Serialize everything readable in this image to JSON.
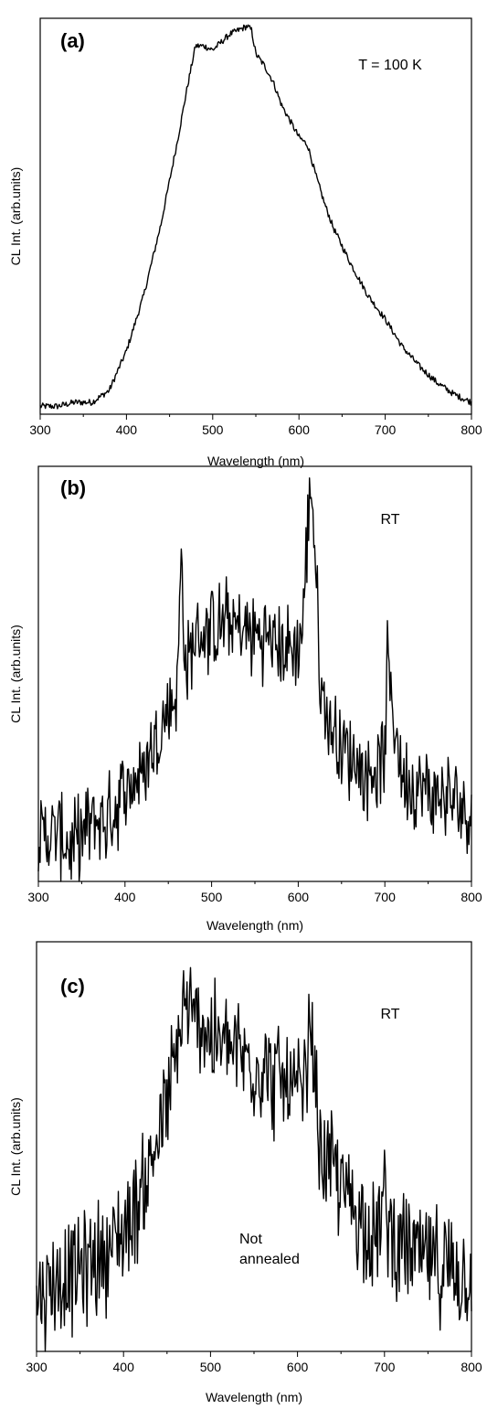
{
  "colors": {
    "line": "#000000",
    "background": "#ffffff"
  },
  "chart_data": [
    {
      "type": "line",
      "panel_label": "(a)",
      "annotation": "T = 100 K",
      "annotation2": "",
      "xlabel": "Wavelength (nm)",
      "ylabel": "CL Int. (arb.units)",
      "xlim": [
        300,
        800
      ],
      "ylim": [
        0,
        1
      ],
      "xticks": [
        "300",
        "400",
        "500",
        "600",
        "700",
        "800"
      ],
      "series": [
        {
          "x": [
            300,
            320,
            340,
            360,
            380,
            400,
            420,
            440,
            460,
            470,
            480,
            490,
            500,
            510,
            520,
            530,
            540,
            545,
            550,
            560,
            570,
            580,
            590,
            600,
            610,
            620,
            630,
            640,
            660,
            680,
            700,
            720,
            740,
            760,
            780,
            800
          ],
          "y": [
            0.02,
            0.02,
            0.03,
            0.03,
            0.06,
            0.16,
            0.3,
            0.48,
            0.7,
            0.82,
            0.93,
            0.93,
            0.92,
            0.94,
            0.96,
            0.97,
            0.98,
            0.97,
            0.91,
            0.88,
            0.84,
            0.78,
            0.74,
            0.7,
            0.68,
            0.6,
            0.53,
            0.47,
            0.38,
            0.3,
            0.24,
            0.17,
            0.12,
            0.08,
            0.05,
            0.03
          ]
        }
      ]
    },
    {
      "type": "line",
      "panel_label": "(b)",
      "annotation": "RT",
      "annotation2": "",
      "xlabel": "Wavelength (nm)",
      "ylabel": "CL Int. (arb.units)",
      "xlim": [
        300,
        800
      ],
      "ylim": [
        0,
        1
      ],
      "xticks": [
        "300",
        "400",
        "500",
        "600",
        "700",
        "800"
      ],
      "series": [
        {
          "x": [
            300,
            320,
            340,
            360,
            380,
            400,
            420,
            440,
            460,
            465,
            470,
            480,
            490,
            500,
            520,
            540,
            560,
            580,
            600,
            605,
            610,
            615,
            620,
            625,
            630,
            640,
            650,
            660,
            680,
            700,
            702,
            720,
            740,
            760,
            780,
            800
          ],
          "y": [
            0.1,
            0.12,
            0.08,
            0.14,
            0.15,
            0.22,
            0.26,
            0.36,
            0.46,
            0.78,
            0.5,
            0.58,
            0.6,
            0.61,
            0.62,
            0.6,
            0.59,
            0.56,
            0.56,
            0.62,
            0.8,
            0.98,
            0.76,
            0.48,
            0.42,
            0.36,
            0.34,
            0.3,
            0.26,
            0.3,
            0.52,
            0.26,
            0.22,
            0.21,
            0.19,
            0.17
          ]
        }
      ]
    },
    {
      "type": "line",
      "panel_label": "(c)",
      "annotation": "RT",
      "annotation2": "Not\nannealed",
      "xlabel": "Wavelength (nm)",
      "ylabel": "CL Int. (arb.units)",
      "xlim": [
        300,
        800
      ],
      "ylim": [
        0,
        1
      ],
      "xticks": [
        "300",
        "400",
        "500",
        "600",
        "700",
        "800"
      ],
      "series": [
        {
          "x": [
            300,
            320,
            340,
            360,
            380,
            400,
            420,
            440,
            460,
            470,
            480,
            490,
            500,
            520,
            540,
            560,
            580,
            600,
            610,
            615,
            620,
            625,
            630,
            650,
            670,
            690,
            700,
            710,
            730,
            760,
            780,
            800
          ],
          "y": [
            0.14,
            0.17,
            0.18,
            0.22,
            0.24,
            0.3,
            0.38,
            0.52,
            0.7,
            0.85,
            0.8,
            0.82,
            0.76,
            0.74,
            0.72,
            0.69,
            0.66,
            0.62,
            0.64,
            0.82,
            0.64,
            0.52,
            0.48,
            0.4,
            0.34,
            0.28,
            0.36,
            0.28,
            0.24,
            0.21,
            0.2,
            0.18
          ]
        }
      ]
    }
  ]
}
